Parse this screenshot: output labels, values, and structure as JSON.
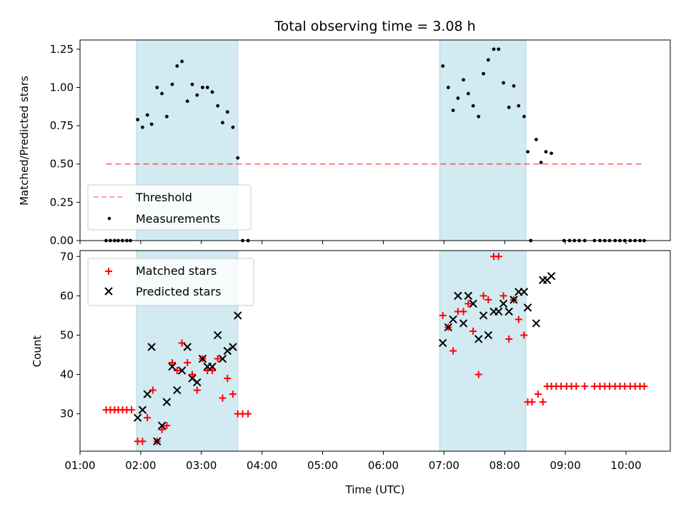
{
  "figure_title": "Total observing time = 3.08 h",
  "colors": {
    "shade": "#add8e6",
    "threshold": "#ff0000",
    "measurement": "#000000",
    "matched": "#ff0000",
    "predicted": "#000000"
  },
  "chart_data": [
    {
      "type": "scatter",
      "title": "Total observing time = 3.08 h",
      "xlabel": "",
      "ylabel": "Matched/Predicted stars",
      "xlim": [
        1.0,
        10.73
      ],
      "ylim": [
        0.0,
        1.31
      ],
      "x_ticks": [
        "01:00",
        "02:00",
        "03:00",
        "04:00",
        "05:00",
        "06:00",
        "07:00",
        "08:00",
        "09:00",
        "10:00"
      ],
      "y_ticks": [
        "0.00",
        "0.25",
        "0.50",
        "0.75",
        "1.00",
        "1.25"
      ],
      "shaded_intervals": [
        [
          1.93,
          3.6
        ],
        [
          6.93,
          8.35
        ]
      ],
      "legend": {
        "position": "lower-left",
        "entries": [
          "Threshold",
          "Measurements"
        ]
      },
      "series": [
        {
          "name": "Threshold",
          "kind": "dashed-line",
          "x": [
            1.43,
            10.28
          ],
          "y": [
            0.5,
            0.5
          ]
        },
        {
          "name": "Measurements",
          "kind": "dots",
          "points": [
            [
              1.43,
              0.0
            ],
            [
              1.5,
              0.0
            ],
            [
              1.57,
              0.0
            ],
            [
              1.63,
              0.0
            ],
            [
              1.7,
              0.0
            ],
            [
              1.77,
              0.0
            ],
            [
              1.83,
              0.0
            ],
            [
              1.95,
              0.79
            ],
            [
              2.03,
              0.74
            ],
            [
              2.11,
              0.82
            ],
            [
              2.18,
              0.76
            ],
            [
              2.27,
              1.0
            ],
            [
              2.35,
              0.96
            ],
            [
              2.43,
              0.81
            ],
            [
              2.52,
              1.02
            ],
            [
              2.6,
              1.14
            ],
            [
              2.68,
              1.17
            ],
            [
              2.77,
              0.91
            ],
            [
              2.85,
              1.02
            ],
            [
              2.93,
              0.95
            ],
            [
              3.02,
              1.0
            ],
            [
              3.1,
              1.0
            ],
            [
              3.18,
              0.97
            ],
            [
              3.27,
              0.88
            ],
            [
              3.35,
              0.77
            ],
            [
              3.43,
              0.84
            ],
            [
              3.52,
              0.74
            ],
            [
              3.6,
              0.54
            ],
            [
              3.68,
              0.0
            ],
            [
              3.77,
              0.0
            ],
            [
              6.98,
              1.14
            ],
            [
              7.07,
              1.0
            ],
            [
              7.15,
              0.85
            ],
            [
              7.23,
              0.93
            ],
            [
              7.32,
              1.05
            ],
            [
              7.4,
              0.96
            ],
            [
              7.48,
              0.88
            ],
            [
              7.57,
              0.81
            ],
            [
              7.65,
              1.09
            ],
            [
              7.73,
              1.18
            ],
            [
              7.82,
              1.25
            ],
            [
              7.9,
              1.25
            ],
            [
              7.98,
              1.03
            ],
            [
              8.07,
              0.87
            ],
            [
              8.15,
              1.01
            ],
            [
              8.23,
              0.88
            ],
            [
              8.32,
              0.81
            ],
            [
              8.38,
              0.58
            ],
            [
              8.43,
              0.0
            ],
            [
              8.52,
              0.66
            ],
            [
              8.6,
              0.51
            ],
            [
              8.68,
              0.58
            ],
            [
              8.77,
              0.57
            ],
            [
              8.98,
              0.0
            ],
            [
              9.07,
              0.0
            ],
            [
              9.15,
              0.0
            ],
            [
              9.23,
              0.0
            ],
            [
              9.32,
              0.0
            ],
            [
              9.48,
              0.0
            ],
            [
              9.57,
              0.0
            ],
            [
              9.65,
              0.0
            ],
            [
              9.73,
              0.0
            ],
            [
              9.82,
              0.0
            ],
            [
              9.9,
              0.0
            ],
            [
              9.98,
              0.0
            ],
            [
              10.07,
              0.0
            ],
            [
              10.15,
              0.0
            ],
            [
              10.23,
              0.0
            ],
            [
              10.3,
              0.0
            ]
          ]
        }
      ]
    },
    {
      "type": "scatter",
      "title": "",
      "xlabel": "Time (UTC)",
      "ylabel": "Count",
      "xlim": [
        1.0,
        10.73
      ],
      "ylim": [
        20.5,
        71.5
      ],
      "x_ticks": [
        "01:00",
        "02:00",
        "03:00",
        "04:00",
        "05:00",
        "06:00",
        "07:00",
        "08:00",
        "09:00",
        "10:00"
      ],
      "y_ticks": [
        "30",
        "40",
        "50",
        "60",
        "70"
      ],
      "shaded_intervals": [
        [
          1.93,
          3.6
        ],
        [
          6.93,
          8.35
        ]
      ],
      "legend": {
        "position": "upper-left",
        "entries": [
          "Matched stars",
          "Predicted stars"
        ]
      },
      "series": [
        {
          "name": "Matched stars",
          "kind": "plus",
          "points": [
            [
              1.43,
              31
            ],
            [
              1.5,
              31
            ],
            [
              1.57,
              31
            ],
            [
              1.63,
              31
            ],
            [
              1.7,
              31
            ],
            [
              1.77,
              31
            ],
            [
              1.85,
              31
            ],
            [
              1.95,
              23
            ],
            [
              2.03,
              23
            ],
            [
              2.11,
              29
            ],
            [
              2.2,
              36
            ],
            [
              2.27,
              23
            ],
            [
              2.35,
              26
            ],
            [
              2.43,
              27
            ],
            [
              2.52,
              43
            ],
            [
              2.6,
              41
            ],
            [
              2.68,
              48
            ],
            [
              2.77,
              43
            ],
            [
              2.85,
              40
            ],
            [
              2.93,
              36
            ],
            [
              3.02,
              44
            ],
            [
              3.1,
              41
            ],
            [
              3.18,
              41
            ],
            [
              3.27,
              44
            ],
            [
              3.35,
              34
            ],
            [
              3.43,
              39
            ],
            [
              3.52,
              35
            ],
            [
              3.6,
              30
            ],
            [
              3.68,
              30
            ],
            [
              3.77,
              30
            ],
            [
              6.98,
              55
            ],
            [
              7.07,
              52
            ],
            [
              7.15,
              46
            ],
            [
              7.23,
              56
            ],
            [
              7.32,
              56
            ],
            [
              7.4,
              58
            ],
            [
              7.48,
              51
            ],
            [
              7.57,
              40
            ],
            [
              7.65,
              60
            ],
            [
              7.73,
              59
            ],
            [
              7.82,
              70
            ],
            [
              7.9,
              70
            ],
            [
              7.98,
              60
            ],
            [
              8.07,
              49
            ],
            [
              8.15,
              59
            ],
            [
              8.23,
              54
            ],
            [
              8.32,
              50
            ],
            [
              8.38,
              33
            ],
            [
              8.45,
              33
            ],
            [
              8.55,
              35
            ],
            [
              8.63,
              33
            ],
            [
              8.7,
              37
            ],
            [
              8.77,
              37
            ],
            [
              8.85,
              37
            ],
            [
              8.93,
              37
            ],
            [
              9.02,
              37
            ],
            [
              9.1,
              37
            ],
            [
              9.18,
              37
            ],
            [
              9.32,
              37
            ],
            [
              9.48,
              37
            ],
            [
              9.57,
              37
            ],
            [
              9.65,
              37
            ],
            [
              9.73,
              37
            ],
            [
              9.82,
              37
            ],
            [
              9.9,
              37
            ],
            [
              9.98,
              37
            ],
            [
              10.07,
              37
            ],
            [
              10.15,
              37
            ],
            [
              10.23,
              37
            ],
            [
              10.3,
              37
            ]
          ]
        },
        {
          "name": "Predicted stars",
          "kind": "cross",
          "points": [
            [
              1.95,
              29
            ],
            [
              2.03,
              31
            ],
            [
              2.11,
              35
            ],
            [
              2.18,
              47
            ],
            [
              2.27,
              23
            ],
            [
              2.35,
              27
            ],
            [
              2.43,
              33
            ],
            [
              2.52,
              42
            ],
            [
              2.6,
              36
            ],
            [
              2.68,
              41
            ],
            [
              2.77,
              47
            ],
            [
              2.85,
              39
            ],
            [
              2.93,
              38
            ],
            [
              3.02,
              44
            ],
            [
              3.1,
              42
            ],
            [
              3.18,
              42
            ],
            [
              3.27,
              50
            ],
            [
              3.35,
              44
            ],
            [
              3.43,
              46
            ],
            [
              3.52,
              47
            ],
            [
              3.6,
              55
            ],
            [
              6.98,
              48
            ],
            [
              7.07,
              52
            ],
            [
              7.15,
              54
            ],
            [
              7.23,
              60
            ],
            [
              7.32,
              53
            ],
            [
              7.4,
              60
            ],
            [
              7.48,
              58
            ],
            [
              7.57,
              49
            ],
            [
              7.65,
              55
            ],
            [
              7.73,
              50
            ],
            [
              7.82,
              56
            ],
            [
              7.9,
              56
            ],
            [
              7.98,
              58
            ],
            [
              8.07,
              56
            ],
            [
              8.15,
              59
            ],
            [
              8.23,
              61
            ],
            [
              8.32,
              61
            ],
            [
              8.38,
              57
            ],
            [
              8.52,
              53
            ],
            [
              8.63,
              64
            ],
            [
              8.7,
              64
            ],
            [
              8.77,
              65
            ]
          ]
        }
      ]
    }
  ]
}
